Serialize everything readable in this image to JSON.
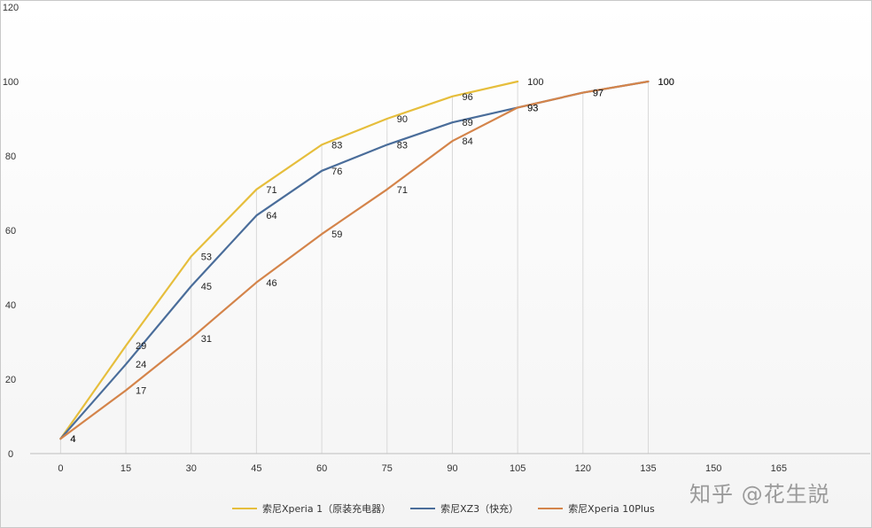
{
  "chart_data": {
    "type": "line",
    "title": "",
    "xlabel": "",
    "ylabel": "",
    "x_ticks": [
      0,
      15,
      30,
      45,
      60,
      75,
      90,
      105,
      120,
      135,
      150,
      165
    ],
    "y_ticks": [
      0,
      20,
      40,
      60,
      80,
      100,
      120
    ],
    "xlim": [
      -7,
      186
    ],
    "ylim": [
      0,
      120
    ],
    "grid": "vertical lines at data points",
    "legend_position": "bottom",
    "series": [
      {
        "name": "索尼Xperia 1（原装充电器）",
        "color": "#E6BE3C",
        "x": [
          0,
          15,
          30,
          45,
          60,
          75,
          90,
          105
        ],
        "values": [
          4,
          29,
          53,
          71,
          83,
          90,
          96,
          100
        ]
      },
      {
        "name": "索尼XZ3（快充）",
        "color": "#4A6D9A",
        "x": [
          0,
          15,
          30,
          45,
          60,
          75,
          90,
          105,
          120,
          135
        ],
        "values": [
          4,
          24,
          45,
          64,
          76,
          83,
          89,
          93,
          97,
          100
        ]
      },
      {
        "name": "索尼Xperia 10Plus",
        "color": "#D4844A",
        "x": [
          0,
          15,
          30,
          45,
          60,
          75,
          90,
          105,
          120,
          135
        ],
        "values": [
          4,
          17,
          31,
          46,
          59,
          71,
          84,
          93,
          97,
          100
        ]
      }
    ]
  },
  "watermark": "知乎 @花生説"
}
